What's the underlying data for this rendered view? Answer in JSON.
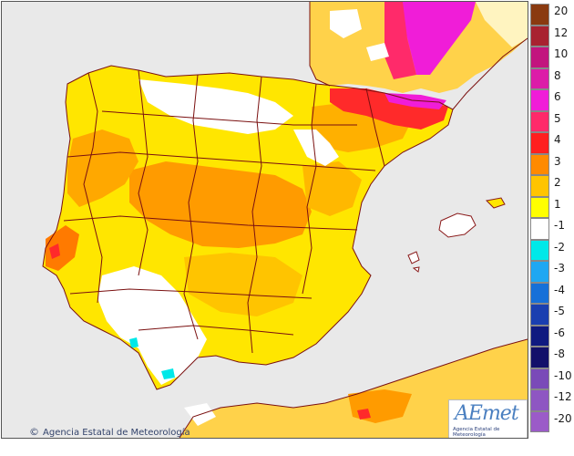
{
  "map": {
    "credit_symbol": "©",
    "credit_text": "Agencia Estatal de Meteorología",
    "logo_text": "AEmet",
    "logo_subtext": "Agencia Estatal de Meteorología"
  },
  "legend": {
    "items": [
      {
        "label": "20",
        "color": "#8a3a10"
      },
      {
        "label": "12",
        "color": "#a82230"
      },
      {
        "label": "10",
        "color": "#c2157e"
      },
      {
        "label": "8",
        "color": "#dc1ca8"
      },
      {
        "label": "6",
        "color": "#f01dd8"
      },
      {
        "label": "5",
        "color": "#ff2a6a"
      },
      {
        "label": "4",
        "color": "#ff1f1f"
      },
      {
        "label": "3",
        "color": "#ff8a00"
      },
      {
        "label": "2",
        "color": "#ffc400"
      },
      {
        "label": "1",
        "color": "#ffff00"
      },
      {
        "label": "-1",
        "color": "#ffffff"
      },
      {
        "label": "-2",
        "color": "#00e8e8"
      },
      {
        "label": "-3",
        "color": "#1fa7f2"
      },
      {
        "label": "-4",
        "color": "#1670d8"
      },
      {
        "label": "-5",
        "color": "#1a3fb0"
      },
      {
        "label": "-6",
        "color": "#0f1a80"
      },
      {
        "label": "-8",
        "color": "#12106a"
      },
      {
        "label": "-10",
        "color": "#7a4ab8"
      },
      {
        "label": "-12",
        "color": "#8e56c2"
      },
      {
        "label": "-20",
        "color": "#9b5bc8"
      }
    ]
  }
}
